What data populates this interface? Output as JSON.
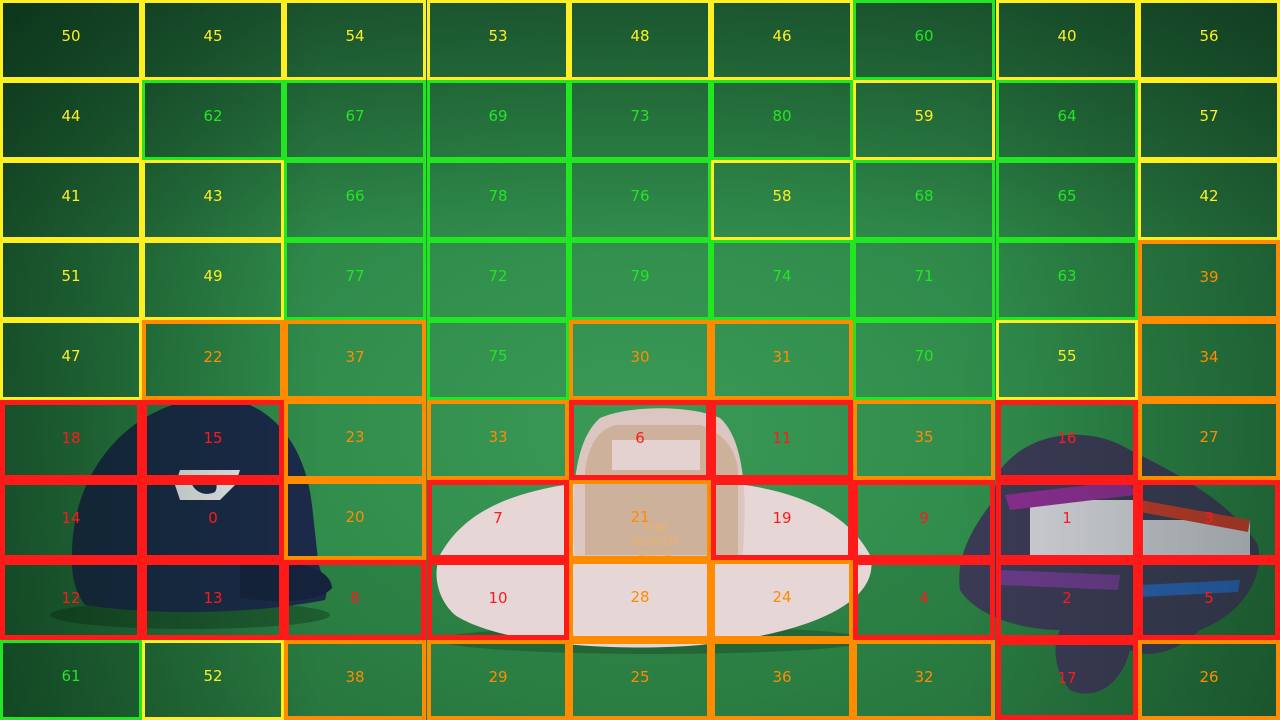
{
  "palette": {
    "red": "#ff1a1a",
    "orange": "#ff8c00",
    "yellow": "#ffee22",
    "green": "#22e622"
  },
  "grid": {
    "cols": 9,
    "rows": 9,
    "cells": [
      [
        {
          "n": "50",
          "c": "yellow"
        },
        {
          "n": "45",
          "c": "yellow"
        },
        {
          "n": "54",
          "c": "yellow"
        },
        {
          "n": "53",
          "c": "yellow"
        },
        {
          "n": "48",
          "c": "yellow"
        },
        {
          "n": "46",
          "c": "yellow"
        },
        {
          "n": "60",
          "c": "green"
        },
        {
          "n": "40",
          "c": "yellow"
        },
        {
          "n": "56",
          "c": "yellow"
        }
      ],
      [
        {
          "n": "44",
          "c": "yellow"
        },
        {
          "n": "62",
          "c": "green"
        },
        {
          "n": "67",
          "c": "green"
        },
        {
          "n": "69",
          "c": "green"
        },
        {
          "n": "73",
          "c": "green"
        },
        {
          "n": "80",
          "c": "green"
        },
        {
          "n": "59",
          "c": "yellow"
        },
        {
          "n": "64",
          "c": "green"
        },
        {
          "n": "57",
          "c": "yellow"
        }
      ],
      [
        {
          "n": "41",
          "c": "yellow"
        },
        {
          "n": "43",
          "c": "yellow"
        },
        {
          "n": "66",
          "c": "green"
        },
        {
          "n": "78",
          "c": "green"
        },
        {
          "n": "76",
          "c": "green"
        },
        {
          "n": "58",
          "c": "yellow"
        },
        {
          "n": "68",
          "c": "green"
        },
        {
          "n": "65",
          "c": "green"
        },
        {
          "n": "42",
          "c": "yellow"
        }
      ],
      [
        {
          "n": "51",
          "c": "yellow"
        },
        {
          "n": "49",
          "c": "yellow"
        },
        {
          "n": "77",
          "c": "green"
        },
        {
          "n": "72",
          "c": "green"
        },
        {
          "n": "79",
          "c": "green"
        },
        {
          "n": "74",
          "c": "green"
        },
        {
          "n": "71",
          "c": "green"
        },
        {
          "n": "63",
          "c": "green"
        },
        {
          "n": "39",
          "c": "orange"
        }
      ],
      [
        {
          "n": "47",
          "c": "yellow"
        },
        {
          "n": "22",
          "c": "orange"
        },
        {
          "n": "37",
          "c": "orange"
        },
        {
          "n": "75",
          "c": "green"
        },
        {
          "n": "30",
          "c": "orange"
        },
        {
          "n": "31",
          "c": "orange"
        },
        {
          "n": "70",
          "c": "green"
        },
        {
          "n": "55",
          "c": "yellow"
        },
        {
          "n": "34",
          "c": "orange"
        }
      ],
      [
        {
          "n": "18",
          "c": "red"
        },
        {
          "n": "15",
          "c": "red"
        },
        {
          "n": "23",
          "c": "orange"
        },
        {
          "n": "33",
          "c": "orange"
        },
        {
          "n": "6",
          "c": "red"
        },
        {
          "n": "11",
          "c": "red"
        },
        {
          "n": "35",
          "c": "orange"
        },
        {
          "n": "16",
          "c": "red"
        },
        {
          "n": "27",
          "c": "orange"
        }
      ],
      [
        {
          "n": "14",
          "c": "red"
        },
        {
          "n": "0",
          "c": "red"
        },
        {
          "n": "20",
          "c": "orange"
        },
        {
          "n": "7",
          "c": "red"
        },
        {
          "n": "21",
          "c": "orange"
        },
        {
          "n": "19",
          "c": "red"
        },
        {
          "n": "9",
          "c": "red"
        },
        {
          "n": "1",
          "c": "red"
        },
        {
          "n": "3",
          "c": "red"
        }
      ],
      [
        {
          "n": "12",
          "c": "red"
        },
        {
          "n": "13",
          "c": "red"
        },
        {
          "n": "8",
          "c": "red"
        },
        {
          "n": "10",
          "c": "red"
        },
        {
          "n": "28",
          "c": "orange"
        },
        {
          "n": "24",
          "c": "orange"
        },
        {
          "n": "4",
          "c": "red"
        },
        {
          "n": "2",
          "c": "red"
        },
        {
          "n": "5",
          "c": "red"
        }
      ],
      [
        {
          "n": "61",
          "c": "green"
        },
        {
          "n": "52",
          "c": "yellow"
        },
        {
          "n": "38",
          "c": "orange"
        },
        {
          "n": "29",
          "c": "orange"
        },
        {
          "n": "25",
          "c": "orange"
        },
        {
          "n": "36",
          "c": "orange"
        },
        {
          "n": "32",
          "c": "orange"
        },
        {
          "n": "17",
          "c": "red"
        },
        {
          "n": "26",
          "c": "orange"
        }
      ]
    ]
  },
  "objects": [
    {
      "name": "baseball-cap",
      "icon": "cap-icon",
      "color": "#1b2a4a",
      "logo_color": "#f2f2f2"
    },
    {
      "name": "bucket-hat",
      "icon": "hat-icon",
      "color": "#e8d9d8",
      "mesh_color": "#c9a98e"
    },
    {
      "name": "knit-scarf",
      "icon": "scarf-icon",
      "color": "#3b3a55"
    }
  ],
  "hat_brand_text": [
    "THE",
    "NORTH",
    "FACE"
  ]
}
